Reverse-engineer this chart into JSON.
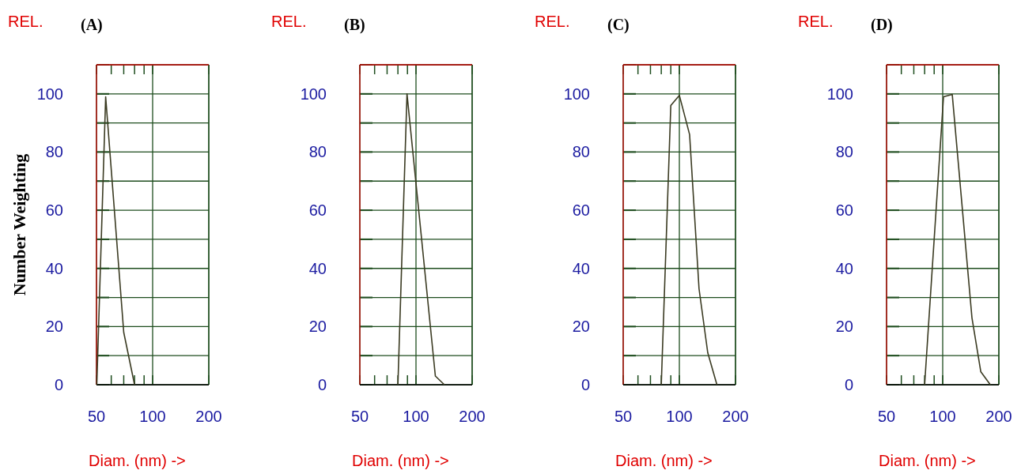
{
  "chart_data": [
    {
      "type": "line",
      "title": "(A)",
      "ylabel": "Number Weighting",
      "xlabel": "Diam. (nm) ->",
      "annotations": [
        "REL."
      ],
      "log": "x",
      "xlim": [
        50,
        200
      ],
      "xticks": [
        50,
        {
          "value": 60,
          "label": null
        },
        {
          "value": 70,
          "label": null
        },
        {
          "value": 80,
          "label": null
        },
        {
          "value": 90,
          "label": null
        },
        100,
        200
      ],
      "ylim": [
        0,
        110
      ],
      "yticks": [
        0,
        {
          "value": 10,
          "label": null
        },
        20,
        {
          "value": 30,
          "label": null
        },
        40,
        {
          "value": 50,
          "label": null
        },
        60,
        {
          "value": 70,
          "label": null
        },
        80,
        {
          "value": 90,
          "label": null
        },
        100,
        {
          "value": 110,
          "label": null
        }
      ],
      "grid": true,
      "marker": "none",
      "line_style": "solid",
      "series": [
        {
          "color": "#3b3b22",
          "x": [
            50.2,
            56,
            70,
            80
          ],
          "values": [
            0,
            99,
            18,
            0
          ]
        }
      ]
    },
    {
      "type": "line",
      "title": "(B)",
      "xlabel": "Diam. (nm) ->",
      "annotations": [
        "REL."
      ],
      "log": "x",
      "xlim": [
        50,
        200
      ],
      "xticks": [
        50,
        {
          "value": 60,
          "label": null
        },
        {
          "value": 70,
          "label": null
        },
        {
          "value": 80,
          "label": null
        },
        {
          "value": 90,
          "label": null
        },
        100,
        200
      ],
      "ylim": [
        0,
        110
      ],
      "yticks": [
        0,
        {
          "value": 10,
          "label": null
        },
        20,
        {
          "value": 30,
          "label": null
        },
        40,
        {
          "value": 50,
          "label": null
        },
        60,
        {
          "value": 70,
          "label": null
        },
        80,
        {
          "value": 90,
          "label": null
        },
        100,
        {
          "value": 110,
          "label": null
        }
      ],
      "grid": true,
      "marker": "none",
      "line_style": "solid",
      "series": [
        {
          "color": "#3b3b22",
          "x": [
            80,
            89.5,
            127,
            142
          ],
          "values": [
            0,
            100,
            3,
            0
          ]
        }
      ]
    },
    {
      "type": "line",
      "title": "(C)",
      "xlabel": "Diam. (nm) ->",
      "annotations": [
        "REL."
      ],
      "log": "x",
      "xlim": [
        50,
        200
      ],
      "xticks": [
        50,
        {
          "value": 60,
          "label": null
        },
        {
          "value": 70,
          "label": null
        },
        {
          "value": 80,
          "label": null
        },
        {
          "value": 90,
          "label": null
        },
        100,
        200
      ],
      "ylim": [
        0,
        110
      ],
      "yticks": [
        0,
        {
          "value": 10,
          "label": null
        },
        20,
        {
          "value": 30,
          "label": null
        },
        40,
        {
          "value": 50,
          "label": null
        },
        60,
        {
          "value": 70,
          "label": null
        },
        80,
        {
          "value": 90,
          "label": null
        },
        100,
        {
          "value": 110,
          "label": null
        }
      ],
      "grid": true,
      "marker": "none",
      "line_style": "solid",
      "series": [
        {
          "color": "#3b3b22",
          "x": [
            80,
            90,
            100,
            113.5,
            127.5,
            142,
            159
          ],
          "values": [
            0,
            96,
            99.5,
            86,
            33,
            11,
            0
          ]
        }
      ]
    },
    {
      "type": "line",
      "title": "(D)",
      "xlabel": "Diam. (nm) ->",
      "annotations": [
        "REL."
      ],
      "log": "x",
      "xlim": [
        50,
        200
      ],
      "xticks": [
        50,
        {
          "value": 60,
          "label": null
        },
        {
          "value": 70,
          "label": null
        },
        {
          "value": 80,
          "label": null
        },
        {
          "value": 90,
          "label": null
        },
        100,
        200
      ],
      "ylim": [
        0,
        110
      ],
      "yticks": [
        0,
        {
          "value": 10,
          "label": null
        },
        20,
        {
          "value": 30,
          "label": null
        },
        40,
        {
          "value": 50,
          "label": null
        },
        60,
        {
          "value": 70,
          "label": null
        },
        80,
        {
          "value": 90,
          "label": null
        },
        100,
        {
          "value": 110,
          "label": null
        }
      ],
      "grid": true,
      "marker": "none",
      "line_style": "solid",
      "series": [
        {
          "color": "#3b3b22",
          "x": [
            80,
            101,
            112.5,
            143.5,
            160,
            180
          ],
          "values": [
            0,
            99,
            99.8,
            23,
            4.5,
            0
          ]
        }
      ]
    }
  ]
}
